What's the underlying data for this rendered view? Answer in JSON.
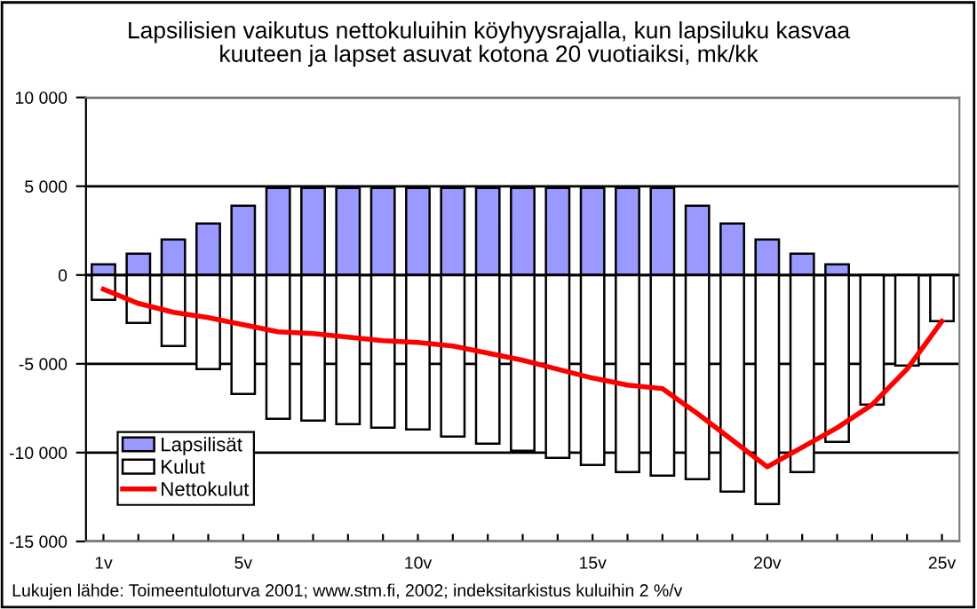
{
  "chart_data": {
    "type": "bar",
    "stacked": true,
    "title": "Lapsilisien vaikutus nettokuluihin köyhyysrajalla, kun lapsiluku kasvaa\nkuuteen ja lapset asuvat kotona 20 vuotiaiksi, mk/kk",
    "categories": [
      "1v",
      null,
      null,
      null,
      "5v",
      null,
      null,
      null,
      null,
      "10v",
      null,
      null,
      null,
      null,
      "15v",
      null,
      null,
      null,
      null,
      "20v",
      null,
      null,
      null,
      null,
      "25v"
    ],
    "series": [
      {
        "name": "Lapsilisät",
        "color": "#9999ff",
        "values": [
          600,
          1200,
          2000,
          2900,
          3900,
          4900,
          4900,
          4900,
          4900,
          4900,
          4900,
          4900,
          4900,
          4900,
          4900,
          4900,
          4900,
          3900,
          2900,
          2000,
          1200,
          600,
          null,
          null,
          null
        ]
      },
      {
        "name": "Kulut",
        "color": "#ffffff",
        "values": [
          -1400,
          -2700,
          -4000,
          -5300,
          -6700,
          -8100,
          -8200,
          -8400,
          -8600,
          -8700,
          -9100,
          -9500,
          -9900,
          -10300,
          -10700,
          -11100,
          -11300,
          -11500,
          -12200,
          -12900,
          -11100,
          -9400,
          -7300,
          -5100,
          -2600
        ]
      },
      {
        "name": "Nettokulut",
        "type": "line",
        "color": "#ff0000",
        "values": [
          -800,
          -1600,
          -2100,
          -2400,
          -2800,
          -3200,
          -3300,
          -3500,
          -3700,
          -3800,
          -4000,
          -4400,
          -4800,
          -5300,
          -5800,
          -6200,
          -6400,
          -7800,
          -9300,
          -10800,
          -9700,
          -8600,
          -7300,
          -5300,
          -2600
        ]
      }
    ],
    "ylim": [
      -15000,
      10000
    ],
    "yticks": [
      {
        "value": -15000,
        "label": "-15 000"
      },
      {
        "value": -10000,
        "label": "-10 000"
      },
      {
        "value": -5000,
        "label": "-5 000"
      },
      {
        "value": 0,
        "label": "0"
      },
      {
        "value": 5000,
        "label": "5 000"
      },
      {
        "value": 10000,
        "label": "10 000"
      }
    ],
    "grid": "y",
    "legend": "bottom left",
    "marker": "none",
    "line_style": "solid",
    "annotations": [
      "Lukujen lähde: Toimeentuloturva 2001; www.stm.fi, 2002; indeksitarkistus kuluihin 2 %/v"
    ]
  }
}
